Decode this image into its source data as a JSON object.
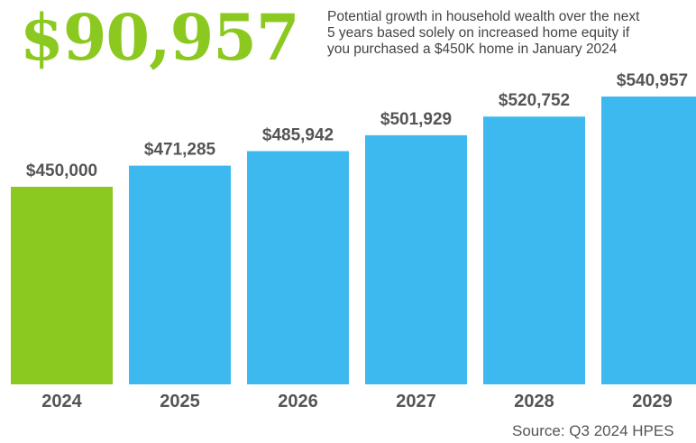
{
  "headline": "$90,957",
  "subtitle": "Potential growth in household wealth over the next\n5 years based solely on increased home equity if\nyou purchased a $450K home in January 2024",
  "source": "Source: Q3 2024 HPES",
  "colors": {
    "highlight": "#8cc920",
    "bar": "#3db9f0",
    "label": "#555555"
  },
  "chart_data": {
    "type": "bar",
    "categories": [
      "2024",
      "2025",
      "2026",
      "2027",
      "2028",
      "2029"
    ],
    "values": [
      450000,
      471285,
      485942,
      501929,
      520752,
      540957
    ],
    "value_labels": [
      "$450,000",
      "$471,285",
      "$485,942",
      "$501,929",
      "$520,752",
      "$540,957"
    ],
    "highlight_index": 0,
    "title": "$90,957",
    "xlabel": "",
    "ylabel": "",
    "ylim": [
      0,
      540957
    ],
    "grid": false,
    "legend": "none"
  }
}
